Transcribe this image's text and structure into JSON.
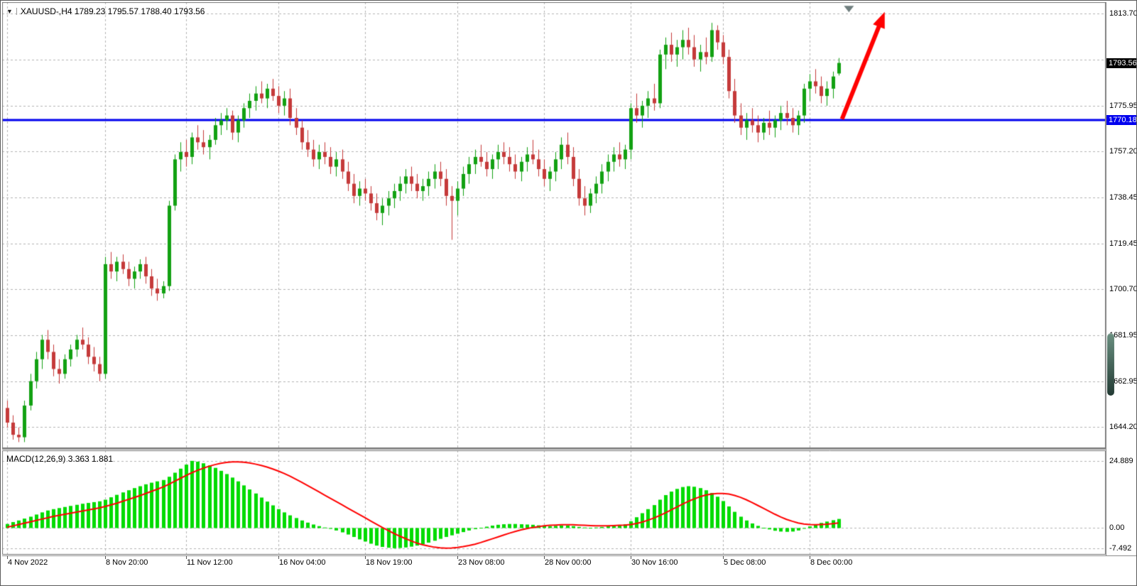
{
  "header": {
    "dropdown_icon": "▼",
    "ohlc_line": "XAUUSD-,H4 1789.23 1795.57 1788.40 1793.56"
  },
  "indicator_header": "MACD(12,26,9) 3.363 1.881",
  "price_axis": {
    "labels": [
      "1813.70",
      "1775.95",
      "1757.20",
      "1738.45",
      "1719.45",
      "1700.70",
      "1681.95",
      "1662.95",
      "1644.20"
    ],
    "current_price_tag": "1793.56",
    "hline_tag": "1770.18"
  },
  "colors": {
    "bull": "#12A112",
    "bear": "#C53A3A",
    "histogram": "#00DB00",
    "signal_line": "#FF0000",
    "hline": "#0000EE",
    "arrow": "#FF0000",
    "grid": "#b4b4b4",
    "pane_border": "#7a7a7a",
    "price_tag_bg": "#000000",
    "hline_tag_bg": "#0000EE",
    "marker_gray": "#6e7d7d"
  },
  "chart_data": [
    {
      "type": "candlestick",
      "symbol": "XAUUSD-",
      "timeframe": "H4",
      "ohlc_display": {
        "open": "1789.23",
        "high": "1795.57",
        "low": "1788.40",
        "close": "1793.56"
      },
      "y_range": [
        1635.5,
        1818.5
      ],
      "grid_levels": [
        1813.7,
        1794.82,
        1775.95,
        1757.2,
        1738.45,
        1719.45,
        1700.7,
        1681.95,
        1662.95,
        1644.2
      ],
      "hline": 1770.18,
      "last_price": 1793.56,
      "x_ticks": [
        {
          "label": "4 Nov 2022",
          "i": 0
        },
        {
          "label": "8 Nov 20:00",
          "i": 17
        },
        {
          "label": "11 Nov 12:00",
          "i": 31
        },
        {
          "label": "16 Nov 04:00",
          "i": 47
        },
        {
          "label": "18 Nov 19:00",
          "i": 62
        },
        {
          "label": "23 Nov 08:00",
          "i": 78
        },
        {
          "label": "28 Nov 00:00",
          "i": 93
        },
        {
          "label": "30 Nov 16:00",
          "i": 108
        },
        {
          "label": "5 Dec 08:00",
          "i": 124
        },
        {
          "label": "8 Dec 00:00",
          "i": 139
        }
      ],
      "candles": [
        [
          1652,
          1655,
          1644,
          1646
        ],
        [
          1646,
          1649,
          1639,
          1641
        ],
        [
          1641,
          1644,
          1638,
          1640
        ],
        [
          1640,
          1655,
          1638,
          1653
        ],
        [
          1653,
          1666,
          1651,
          1663
        ],
        [
          1663,
          1675,
          1660,
          1672
        ],
        [
          1672,
          1682,
          1668,
          1680
        ],
        [
          1680,
          1684,
          1672,
          1675
        ],
        [
          1675,
          1678,
          1665,
          1668
        ],
        [
          1668,
          1672,
          1662,
          1666
        ],
        [
          1666,
          1674,
          1664,
          1672
        ],
        [
          1672,
          1678,
          1669,
          1676
        ],
        [
          1676,
          1682,
          1673,
          1680
        ],
        [
          1680,
          1685,
          1676,
          1678
        ],
        [
          1678,
          1681,
          1670,
          1673
        ],
        [
          1673,
          1677,
          1667,
          1670
        ],
        [
          1670,
          1673,
          1663,
          1666
        ],
        [
          1666,
          1714,
          1664,
          1711
        ],
        [
          1711,
          1716,
          1705,
          1708
        ],
        [
          1708,
          1714,
          1704,
          1712
        ],
        [
          1712,
          1715,
          1707,
          1709
        ],
        [
          1709,
          1712,
          1702,
          1705
        ],
        [
          1705,
          1710,
          1701,
          1708
        ],
        [
          1708,
          1713,
          1705,
          1711
        ],
        [
          1711,
          1714,
          1703,
          1706
        ],
        [
          1706,
          1709,
          1698,
          1701
        ],
        [
          1701,
          1705,
          1696,
          1699
        ],
        [
          1699,
          1704,
          1697,
          1702
        ],
        [
          1702,
          1737,
          1700,
          1735
        ],
        [
          1735,
          1756,
          1733,
          1754
        ],
        [
          1754,
          1761,
          1749,
          1757
        ],
        [
          1757,
          1762,
          1751,
          1755
        ],
        [
          1755,
          1765,
          1752,
          1763
        ],
        [
          1763,
          1768,
          1758,
          1761
        ],
        [
          1761,
          1766,
          1756,
          1759
        ],
        [
          1759,
          1764,
          1754,
          1762
        ],
        [
          1762,
          1771,
          1760,
          1768
        ],
        [
          1768,
          1773,
          1764,
          1770
        ],
        [
          1770,
          1775,
          1766,
          1772
        ],
        [
          1772,
          1774,
          1762,
          1765
        ],
        [
          1765,
          1772,
          1761,
          1770
        ],
        [
          1770,
          1777,
          1767,
          1775
        ],
        [
          1775,
          1781,
          1771,
          1778
        ],
        [
          1778,
          1784,
          1774,
          1781
        ],
        [
          1781,
          1786,
          1777,
          1779
        ],
        [
          1779,
          1785,
          1775,
          1783
        ],
        [
          1783,
          1787,
          1778,
          1780
        ],
        [
          1780,
          1784,
          1773,
          1776
        ],
        [
          1776,
          1782,
          1772,
          1779
        ],
        [
          1779,
          1783,
          1768,
          1771
        ],
        [
          1771,
          1775,
          1764,
          1767
        ],
        [
          1767,
          1770,
          1758,
          1761
        ],
        [
          1761,
          1766,
          1755,
          1758
        ],
        [
          1758,
          1762,
          1751,
          1754
        ],
        [
          1754,
          1760,
          1750,
          1757
        ],
        [
          1757,
          1761,
          1752,
          1755
        ],
        [
          1755,
          1759,
          1748,
          1751
        ],
        [
          1751,
          1757,
          1747,
          1754
        ],
        [
          1754,
          1758,
          1746,
          1749
        ],
        [
          1749,
          1753,
          1741,
          1744
        ],
        [
          1744,
          1748,
          1736,
          1739
        ],
        [
          1739,
          1745,
          1735,
          1742
        ],
        [
          1742,
          1746,
          1737,
          1740
        ],
        [
          1740,
          1743,
          1733,
          1736
        ],
        [
          1736,
          1740,
          1729,
          1732
        ],
        [
          1732,
          1738,
          1727,
          1735
        ],
        [
          1735,
          1741,
          1731,
          1738
        ],
        [
          1738,
          1744,
          1734,
          1741
        ],
        [
          1741,
          1747,
          1737,
          1744
        ],
        [
          1744,
          1750,
          1740,
          1747
        ],
        [
          1747,
          1751,
          1741,
          1744
        ],
        [
          1744,
          1748,
          1738,
          1741
        ],
        [
          1741,
          1746,
          1737,
          1743
        ],
        [
          1743,
          1749,
          1739,
          1746
        ],
        [
          1746,
          1752,
          1742,
          1749
        ],
        [
          1749,
          1753,
          1743,
          1746
        ],
        [
          1746,
          1750,
          1735,
          1739
        ],
        [
          1739,
          1743,
          1721,
          1737
        ],
        [
          1737,
          1745,
          1731,
          1742
        ],
        [
          1742,
          1751,
          1739,
          1748
        ],
        [
          1748,
          1755,
          1744,
          1752
        ],
        [
          1752,
          1758,
          1748,
          1755
        ],
        [
          1755,
          1760,
          1751,
          1753
        ],
        [
          1753,
          1757,
          1747,
          1750
        ],
        [
          1750,
          1756,
          1746,
          1754
        ],
        [
          1754,
          1760,
          1750,
          1757
        ],
        [
          1757,
          1761,
          1752,
          1755
        ],
        [
          1755,
          1759,
          1749,
          1752
        ],
        [
          1752,
          1756,
          1746,
          1749
        ],
        [
          1749,
          1755,
          1745,
          1753
        ],
        [
          1753,
          1759,
          1749,
          1756
        ],
        [
          1756,
          1762,
          1752,
          1754
        ],
        [
          1754,
          1758,
          1747,
          1750
        ],
        [
          1750,
          1754,
          1743,
          1746
        ],
        [
          1746,
          1751,
          1741,
          1749
        ],
        [
          1749,
          1757,
          1745,
          1754
        ],
        [
          1754,
          1763,
          1750,
          1760
        ],
        [
          1760,
          1765,
          1752,
          1755
        ],
        [
          1755,
          1759,
          1743,
          1746
        ],
        [
          1746,
          1750,
          1735,
          1738
        ],
        [
          1738,
          1743,
          1731,
          1735
        ],
        [
          1735,
          1742,
          1732,
          1740
        ],
        [
          1740,
          1747,
          1736,
          1744
        ],
        [
          1744,
          1752,
          1740,
          1749
        ],
        [
          1749,
          1756,
          1745,
          1753
        ],
        [
          1753,
          1759,
          1749,
          1756
        ],
        [
          1756,
          1761,
          1751,
          1754
        ],
        [
          1754,
          1760,
          1750,
          1758
        ],
        [
          1758,
          1777,
          1754,
          1775
        ],
        [
          1775,
          1781,
          1769,
          1772
        ],
        [
          1772,
          1778,
          1767,
          1776
        ],
        [
          1776,
          1782,
          1771,
          1779
        ],
        [
          1779,
          1785,
          1774,
          1777
        ],
        [
          1777,
          1799,
          1775,
          1797
        ],
        [
          1797,
          1804,
          1791,
          1801
        ],
        [
          1801,
          1806,
          1794,
          1797
        ],
        [
          1797,
          1803,
          1792,
          1800
        ],
        [
          1800,
          1807,
          1795,
          1803
        ],
        [
          1803,
          1808,
          1797,
          1800
        ],
        [
          1800,
          1805,
          1792,
          1795
        ],
        [
          1795,
          1801,
          1790,
          1798
        ],
        [
          1798,
          1804,
          1793,
          1796
        ],
        [
          1796,
          1810,
          1794,
          1807
        ],
        [
          1807,
          1809,
          1799,
          1802
        ],
        [
          1802,
          1805,
          1793,
          1796
        ],
        [
          1796,
          1799,
          1779,
          1782
        ],
        [
          1782,
          1787,
          1769,
          1772
        ],
        [
          1772,
          1777,
          1764,
          1767
        ],
        [
          1767,
          1773,
          1762,
          1770
        ],
        [
          1770,
          1775,
          1765,
          1768
        ],
        [
          1768,
          1772,
          1761,
          1765
        ],
        [
          1765,
          1771,
          1762,
          1769
        ],
        [
          1769,
          1774,
          1764,
          1767
        ],
        [
          1767,
          1772,
          1763,
          1770
        ],
        [
          1770,
          1776,
          1766,
          1773
        ],
        [
          1773,
          1778,
          1768,
          1771
        ],
        [
          1771,
          1775,
          1765,
          1768
        ],
        [
          1768,
          1774,
          1764,
          1772
        ],
        [
          1772,
          1785,
          1769,
          1783
        ],
        [
          1783,
          1789,
          1778,
          1786
        ],
        [
          1786,
          1791,
          1781,
          1784
        ],
        [
          1784,
          1788,
          1777,
          1780
        ],
        [
          1780,
          1786,
          1776,
          1783
        ],
        [
          1783,
          1790,
          1779,
          1788
        ],
        [
          1789.23,
          1795.57,
          1788.4,
          1793.56
        ]
      ],
      "annotations": {
        "trend_arrow": {
          "from": {
            "i": 144.6,
            "price": 1770.5
          },
          "to": {
            "i": 152,
            "price": 1814.5
          }
        },
        "gray_triangle_marker": {
          "i": 145.8,
          "price": 1817.0
        }
      }
    },
    {
      "type": "macd",
      "label": "MACD(12,26,9) 3.363 1.881",
      "params": "12,26,9",
      "current_values": {
        "macd": 3.363,
        "signal": 1.881
      },
      "y_range": [
        -9.9,
        28.8
      ],
      "y_ticks": [
        "24.889",
        "0.00",
        "-7.492"
      ],
      "histogram": [
        1.5,
        2.2,
        2.8,
        3.5,
        4.2,
        5.0,
        5.8,
        6.5,
        7.0,
        7.4,
        7.8,
        8.2,
        8.6,
        9.0,
        9.3,
        9.6,
        9.9,
        10.5,
        11.4,
        12.3,
        13.2,
        14.0,
        14.8,
        15.5,
        16.2,
        16.8,
        17.3,
        17.8,
        19.0,
        20.5,
        22.0,
        23.5,
        24.889,
        24.6,
        24.0,
        23.2,
        22.3,
        21.2,
        20.0,
        18.7,
        17.3,
        15.8,
        14.3,
        12.8,
        11.3,
        9.8,
        8.4,
        7.0,
        5.8,
        4.7,
        3.7,
        2.8,
        2.0,
        1.3,
        0.7,
        0.2,
        -0.3,
        -0.9,
        -1.6,
        -2.4,
        -3.3,
        -4.2,
        -5.0,
        -5.8,
        -6.5,
        -7.0,
        -7.3,
        -7.492,
        -7.4,
        -7.2,
        -6.9,
        -6.5,
        -6.0,
        -5.4,
        -4.7,
        -4.0,
        -3.3,
        -2.7,
        -2.1,
        -1.5,
        -0.9,
        -0.4,
        0.1,
        0.5,
        0.9,
        1.2,
        1.4,
        1.5,
        1.5,
        1.4,
        1.3,
        1.2,
        1.0,
        0.8,
        0.7,
        0.8,
        0.9,
        0.9,
        0.7,
        0.4,
        0.2,
        0.1,
        0.2,
        0.4,
        0.6,
        0.8,
        1.0,
        1.4,
        2.5,
        4.0,
        5.5,
        7.0,
        8.5,
        10.5,
        12.2,
        13.5,
        14.5,
        15.2,
        15.5,
        15.3,
        14.8,
        14.0,
        13.0,
        11.6,
        10.0,
        8.0,
        6.0,
        4.2,
        2.8,
        1.7,
        0.8,
        0.1,
        -0.5,
        -1.0,
        -1.3,
        -1.4,
        -1.3,
        -0.9,
        -0.2,
        0.6,
        1.3,
        1.9,
        2.4,
        2.9,
        3.363
      ],
      "signal": [
        0.3,
        0.8,
        1.3,
        1.8,
        2.3,
        2.8,
        3.3,
        3.8,
        4.3,
        4.7,
        5.1,
        5.5,
        5.9,
        6.3,
        6.7,
        7.1,
        7.5,
        8.0,
        8.6,
        9.2,
        9.9,
        10.6,
        11.3,
        12.0,
        12.8,
        13.6,
        14.4,
        15.2,
        16.2,
        17.3,
        18.4,
        19.5,
        20.5,
        21.4,
        22.2,
        22.9,
        23.5,
        24.0,
        24.3,
        24.5,
        24.5,
        24.4,
        24.1,
        23.7,
        23.2,
        22.6,
        21.9,
        21.1,
        20.2,
        19.2,
        18.1,
        17.0,
        15.8,
        14.6,
        13.4,
        12.2,
        11.0,
        9.8,
        8.6,
        7.4,
        6.2,
        5.0,
        3.8,
        2.6,
        1.4,
        0.2,
        -0.9,
        -2.0,
        -3.0,
        -3.9,
        -4.8,
        -5.6,
        -6.2,
        -6.7,
        -7.1,
        -7.35,
        -7.45,
        -7.4,
        -7.2,
        -6.9,
        -6.5,
        -6.0,
        -5.4,
        -4.7,
        -4.0,
        -3.3,
        -2.6,
        -1.9,
        -1.3,
        -0.7,
        -0.2,
        0.2,
        0.5,
        0.8,
        1.0,
        1.1,
        1.2,
        1.2,
        1.2,
        1.1,
        1.0,
        0.9,
        0.8,
        0.8,
        0.8,
        0.9,
        1.0,
        1.1,
        1.3,
        1.7,
        2.2,
        2.9,
        3.7,
        4.6,
        5.6,
        6.7,
        7.8,
        8.9,
        9.9,
        10.8,
        11.6,
        12.2,
        12.6,
        12.8,
        12.8,
        12.6,
        12.1,
        11.4,
        10.5,
        9.5,
        8.4,
        7.3,
        6.2,
        5.1,
        4.1,
        3.2,
        2.5,
        1.9,
        1.5,
        1.3,
        1.2,
        1.3,
        1.4,
        1.6,
        1.881
      ]
    }
  ]
}
